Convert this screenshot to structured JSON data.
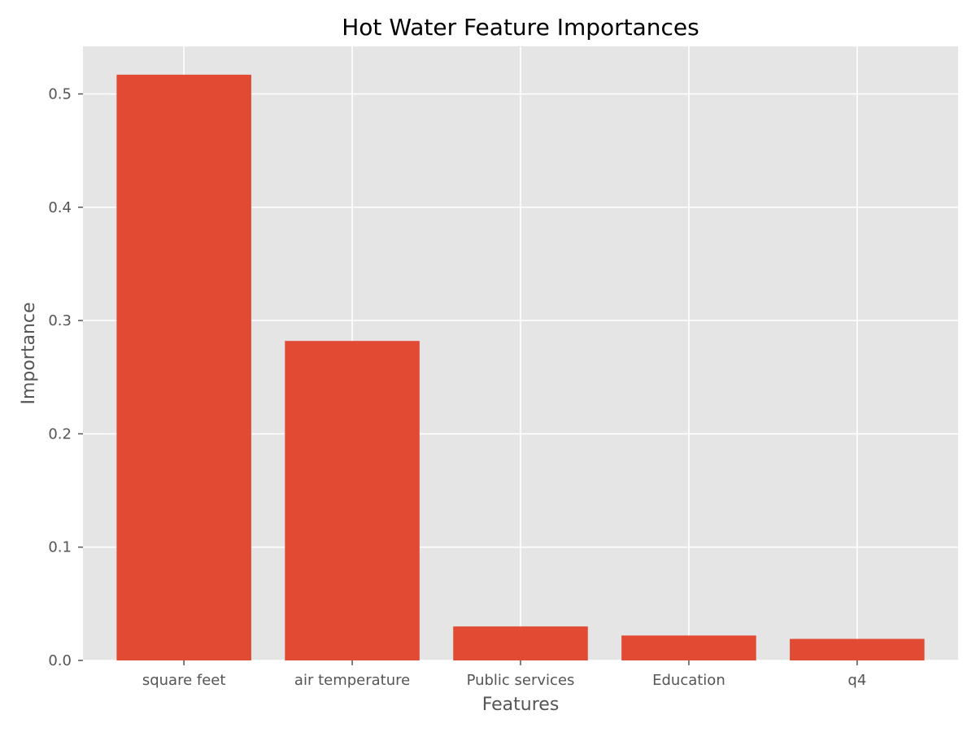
{
  "chart_data": {
    "type": "bar",
    "title": "Hot Water Feature Importances",
    "xlabel": "Features",
    "ylabel": "Importance",
    "categories": [
      "square feet",
      "air temperature",
      "Public services",
      "Education",
      "q4"
    ],
    "values": [
      0.517,
      0.282,
      0.03,
      0.022,
      0.019
    ],
    "ylim": [
      0,
      0.542
    ],
    "yticks": [
      0.0,
      0.1,
      0.2,
      0.3,
      0.4,
      0.5
    ],
    "ytick_labels": [
      "0.0",
      "0.1",
      "0.2",
      "0.3",
      "0.4",
      "0.5"
    ],
    "grid": true,
    "bar_color": "#E24A33",
    "plot_background": "#E5E5E5"
  }
}
